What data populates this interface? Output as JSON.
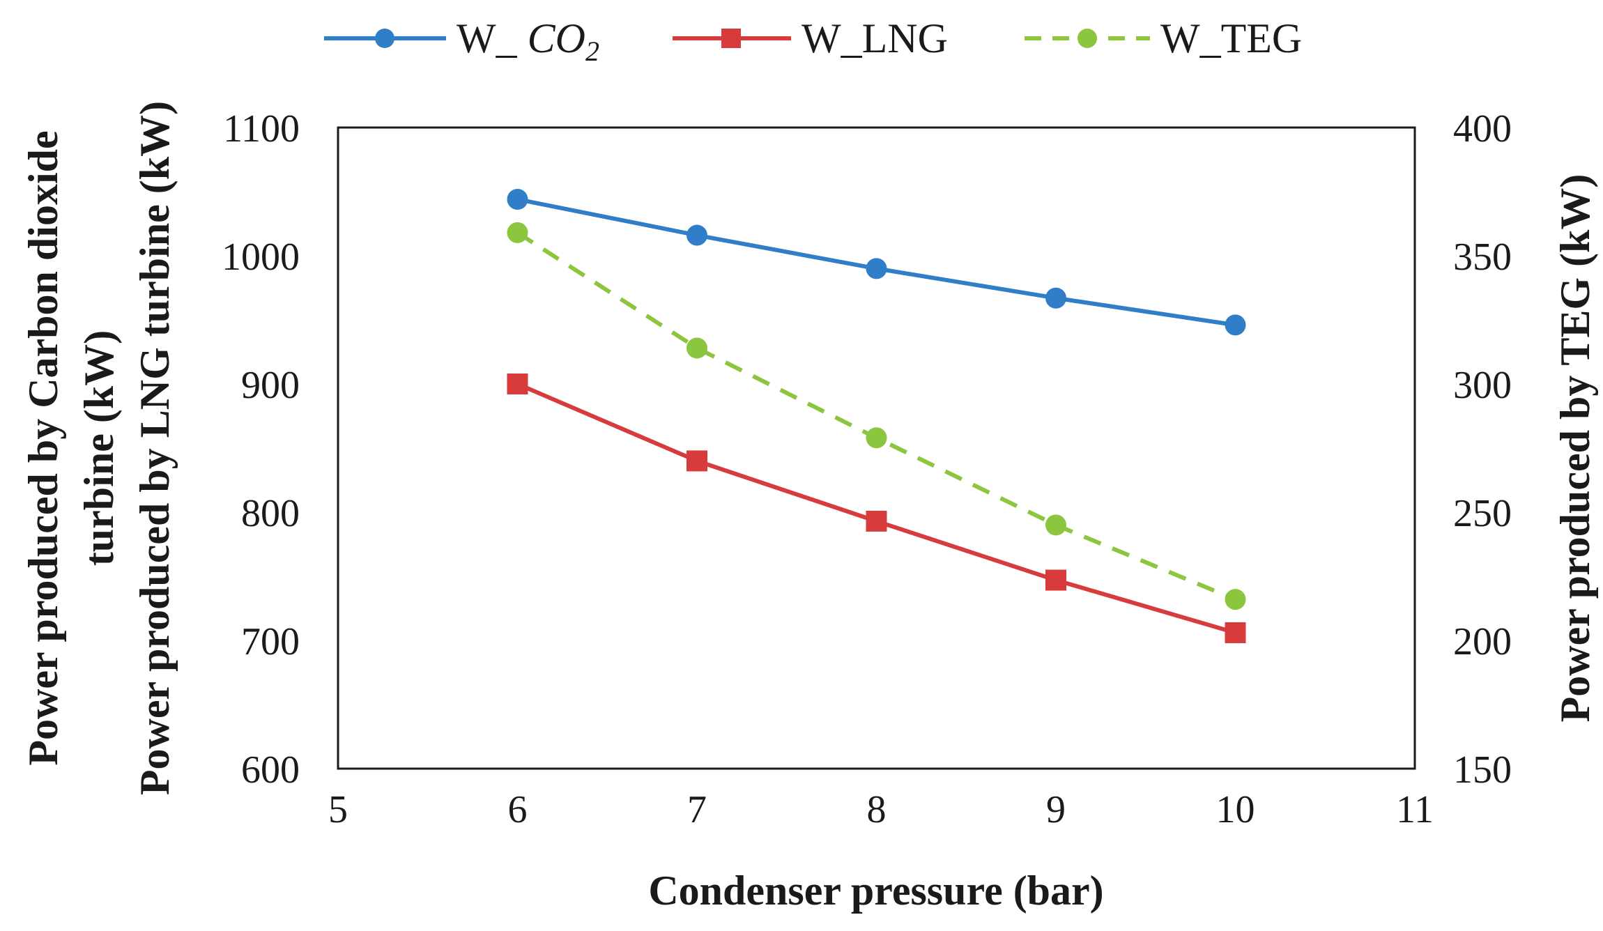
{
  "chart_data": {
    "type": "line",
    "title": "",
    "xlabel": "Condenser pressure (bar)",
    "ylabel_left": [
      "Power produced by Carbon dioxide",
      "turbine (kW)",
      "Power produced by LNG turbine (kW)"
    ],
    "ylabel_right": "Power produced by TEG (kW)",
    "xlim": [
      5,
      11
    ],
    "ylim_left": [
      600,
      1100
    ],
    "ylim_right": [
      150,
      400
    ],
    "x_ticks": [
      "5",
      "6",
      "7",
      "8",
      "9",
      "10",
      "11"
    ],
    "y_left_ticks": [
      "600",
      "700",
      "800",
      "900",
      "1000",
      "1100"
    ],
    "y_right_ticks": [
      "150",
      "200",
      "250",
      "300",
      "350",
      "400"
    ],
    "x": [
      6,
      7,
      8,
      9,
      10
    ],
    "grid": false,
    "legend_position": "top",
    "series": [
      {
        "name": "W_CO2",
        "legend_prefix": "W_ ",
        "legend_main": "CO",
        "legend_sub": "2",
        "axis": "left",
        "marker": "circle",
        "style": "solid",
        "color": "#2f7ec7",
        "values": [
          1044,
          1016,
          990,
          967,
          946
        ]
      },
      {
        "name": "W_LNG",
        "legend_label": "W_LNG",
        "axis": "left",
        "marker": "square",
        "style": "solid",
        "color": "#d83b3b",
        "values": [
          900,
          840,
          793,
          747,
          706
        ]
      },
      {
        "name": "W_TEG",
        "legend_label": "W_TEG",
        "axis": "right",
        "marker": "circle",
        "style": "dashed",
        "color": "#8cc63f",
        "values": [
          359,
          314,
          279,
          245,
          216
        ]
      }
    ]
  }
}
